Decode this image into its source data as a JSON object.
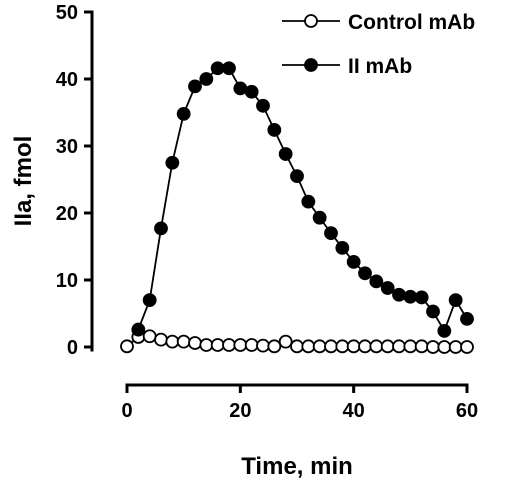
{
  "chart_data": {
    "type": "line",
    "title": "",
    "xlabel": "Time, min",
    "ylabel": "IIa, fmol",
    "xlim": [
      0,
      60
    ],
    "ylim": [
      0,
      50
    ],
    "xticks": [
      0,
      20,
      40,
      60
    ],
    "yticks": [
      0,
      10,
      20,
      30,
      40,
      50
    ],
    "grid": false,
    "legend_position": "top-right",
    "series": [
      {
        "name": "Control mAb",
        "marker": "open-circle",
        "color": "#000000",
        "x": [
          0,
          2,
          4,
          6,
          8,
          10,
          12,
          14,
          16,
          18,
          20,
          22,
          24,
          26,
          28,
          30,
          32,
          34,
          36,
          38,
          40,
          42,
          44,
          46,
          48,
          50,
          52,
          54,
          56,
          58,
          60
        ],
        "y": [
          0.1,
          1.5,
          1.6,
          1.1,
          0.8,
          0.8,
          0.6,
          0.3,
          0.3,
          0.3,
          0.3,
          0.3,
          0.2,
          0.1,
          0.8,
          0.1,
          0.1,
          0.1,
          0.1,
          0.1,
          0.1,
          0.1,
          0.1,
          0.1,
          0.1,
          0.1,
          0.1,
          0,
          0,
          0,
          0
        ]
      },
      {
        "name": "II mAb",
        "marker": "filled-circle",
        "color": "#000000",
        "x": [
          2,
          4,
          6,
          8,
          10,
          12,
          14,
          16,
          18,
          20,
          22,
          24,
          26,
          28,
          30,
          32,
          34,
          36,
          38,
          40,
          42,
          44,
          46,
          48,
          50,
          52,
          54,
          56,
          58,
          60
        ],
        "y": [
          2.6,
          7,
          17.7,
          27.5,
          34.8,
          38.9,
          40,
          41.6,
          41.6,
          38.6,
          38.1,
          36,
          32.4,
          28.8,
          25.5,
          21.7,
          19.3,
          17,
          14.8,
          12.7,
          11,
          9.8,
          8.8,
          7.8,
          7.5,
          7.4,
          5.3,
          2.4,
          7,
          4.2
        ]
      }
    ]
  }
}
